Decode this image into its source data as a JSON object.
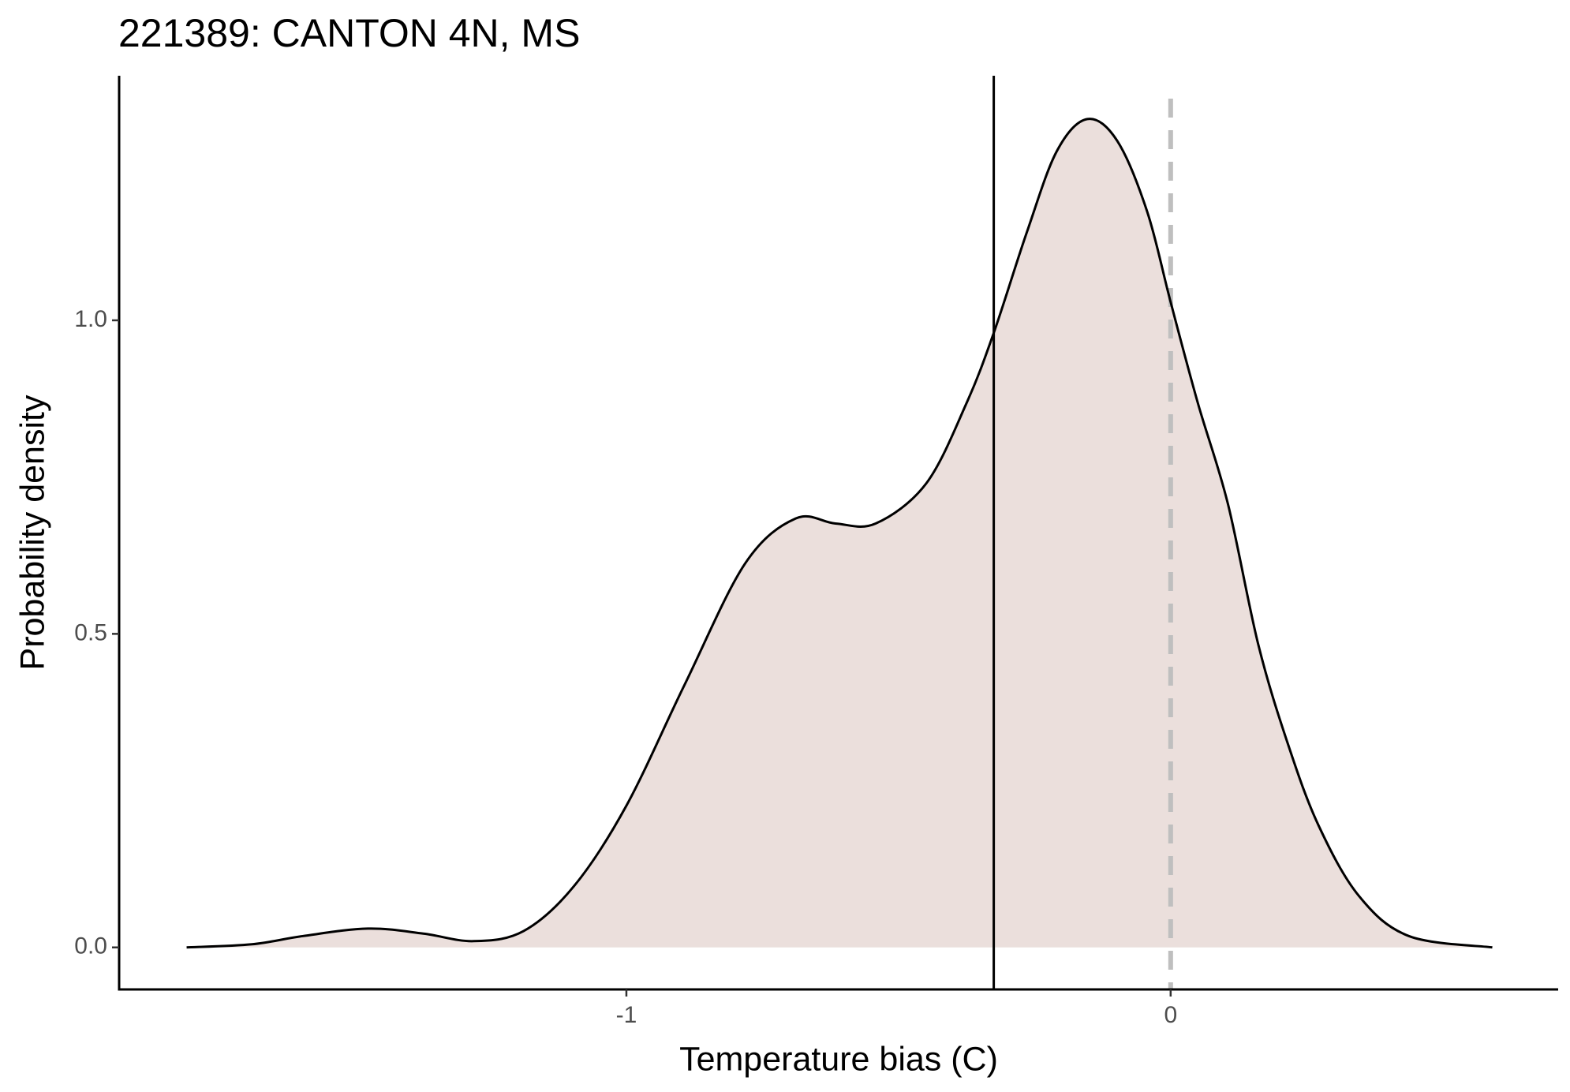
{
  "chart_data": {
    "type": "density",
    "title": "221389: CANTON 4N, MS",
    "x_label": "Temperature bias (C)",
    "y_label": "Probability density",
    "x": [
      -1.808,
      -1.688,
      -1.595,
      -1.475,
      -1.373,
      -1.281,
      -1.189,
      -1.096,
      -1.0,
      -0.893,
      -0.782,
      -0.689,
      -0.616,
      -0.542,
      -0.449,
      -0.375,
      -0.325,
      -0.264,
      -0.209,
      -0.153,
      -0.098,
      -0.043,
      0.0,
      0.05,
      0.105,
      0.161,
      0.216,
      0.272,
      0.346,
      0.438,
      0.591
    ],
    "values": [
      0,
      0.005,
      0.018,
      0.03,
      0.022,
      0.01,
      0.026,
      0.098,
      0.226,
      0.419,
      0.612,
      0.684,
      0.676,
      0.676,
      0.74,
      0.868,
      0.98,
      1.141,
      1.27,
      1.321,
      1.286,
      1.173,
      1.029,
      0.868,
      0.708,
      0.483,
      0.323,
      0.194,
      0.082,
      0.018,
      0
    ],
    "color": "#000000",
    "fill": "#ebdfdc",
    "vlines": [
      {
        "value": -0.325,
        "color": "#000000",
        "dashed": false
      },
      {
        "value": 0,
        "color": "#bfbfbf",
        "dashed": true
      }
    ],
    "xlim": [
      -1.932,
      0.712
    ],
    "xticks": [
      -1,
      0
    ],
    "ylim": [
      -0.067,
      1.39
    ],
    "yticks": [
      {
        "value": 0,
        "label": "0.0"
      },
      {
        "value": 0.5,
        "label": "0.5"
      },
      {
        "value": 1,
        "label": "1.0"
      }
    ]
  }
}
